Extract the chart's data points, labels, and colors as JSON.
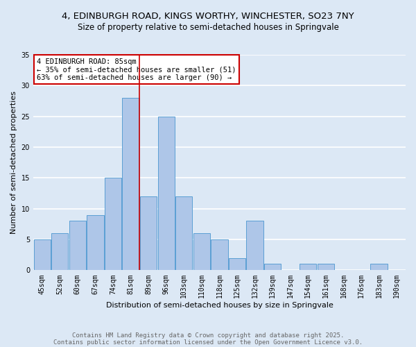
{
  "title": "4, EDINBURGH ROAD, KINGS WORTHY, WINCHESTER, SO23 7NY",
  "subtitle": "Size of property relative to semi-detached houses in Springvale",
  "xlabel": "Distribution of semi-detached houses by size in Springvale",
  "ylabel": "Number of semi-detached properties",
  "categories": [
    "45sqm",
    "52sqm",
    "60sqm",
    "67sqm",
    "74sqm",
    "81sqm",
    "89sqm",
    "96sqm",
    "103sqm",
    "110sqm",
    "118sqm",
    "125sqm",
    "132sqm",
    "139sqm",
    "147sqm",
    "154sqm",
    "161sqm",
    "168sqm",
    "176sqm",
    "183sqm",
    "190sqm"
  ],
  "values": [
    5,
    6,
    8,
    9,
    15,
    28,
    12,
    25,
    12,
    6,
    5,
    2,
    8,
    1,
    0,
    1,
    1,
    0,
    0,
    1,
    0
  ],
  "bar_color": "#aec6e8",
  "bar_edge_color": "#5a9fd4",
  "background_color": "#dce8f5",
  "grid_color": "#ffffff",
  "vline_x": 5.5,
  "vline_color": "#cc0000",
  "annotation_text": "4 EDINBURGH ROAD: 85sqm\n← 35% of semi-detached houses are smaller (51)\n63% of semi-detached houses are larger (90) →",
  "annotation_box_color": "#ffffff",
  "annotation_box_edge_color": "#cc0000",
  "footer_line1": "Contains HM Land Registry data © Crown copyright and database right 2025.",
  "footer_line2": "Contains public sector information licensed under the Open Government Licence v3.0.",
  "ylim": [
    0,
    35
  ],
  "yticks": [
    0,
    5,
    10,
    15,
    20,
    25,
    30,
    35
  ],
  "title_fontsize": 9.5,
  "subtitle_fontsize": 8.5,
  "axis_label_fontsize": 8,
  "tick_fontsize": 7,
  "annotation_fontsize": 7.5,
  "footer_fontsize": 6.5
}
